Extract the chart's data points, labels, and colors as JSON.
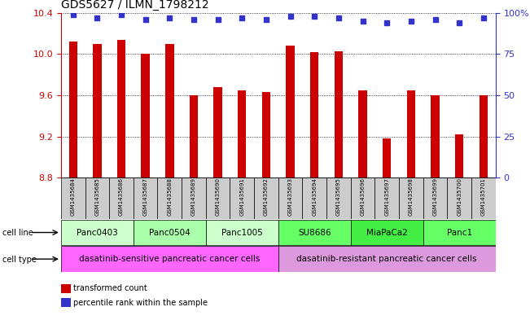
{
  "title": "GDS5627 / ILMN_1798212",
  "samples": [
    "GSM1435684",
    "GSM1435685",
    "GSM1435686",
    "GSM1435687",
    "GSM1435688",
    "GSM1435689",
    "GSM1435690",
    "GSM1435691",
    "GSM1435692",
    "GSM1435693",
    "GSM1435694",
    "GSM1435695",
    "GSM1435696",
    "GSM1435697",
    "GSM1435698",
    "GSM1435699",
    "GSM1435700",
    "GSM1435701"
  ],
  "transformed_count": [
    10.12,
    10.1,
    10.14,
    10.0,
    10.1,
    9.6,
    9.68,
    9.65,
    9.63,
    10.08,
    10.02,
    10.03,
    9.65,
    9.18,
    9.65,
    9.6,
    9.22,
    9.6
  ],
  "percentile_rank": [
    99,
    97,
    99,
    96,
    97,
    96,
    96,
    97,
    96,
    98,
    98,
    97,
    95,
    94,
    95,
    96,
    94,
    97
  ],
  "ylim_left": [
    8.8,
    10.4
  ],
  "ylim_right": [
    0,
    100
  ],
  "yticks_left": [
    8.8,
    9.2,
    9.6,
    10.0,
    10.4
  ],
  "yticks_right": [
    0,
    25,
    50,
    75,
    100
  ],
  "bar_color": "#cc0000",
  "scatter_color": "#3333cc",
  "cell_lines": [
    {
      "name": "Panc0403",
      "start": 0,
      "end": 3,
      "color": "#ccffcc"
    },
    {
      "name": "Panc0504",
      "start": 3,
      "end": 6,
      "color": "#aaffaa"
    },
    {
      "name": "Panc1005",
      "start": 6,
      "end": 9,
      "color": "#ccffcc"
    },
    {
      "name": "SU8686",
      "start": 9,
      "end": 12,
      "color": "#66ff66"
    },
    {
      "name": "MiaPaCa2",
      "start": 12,
      "end": 15,
      "color": "#44ee44"
    },
    {
      "name": "Panc1",
      "start": 15,
      "end": 18,
      "color": "#66ff66"
    }
  ],
  "cell_types": [
    {
      "name": "dasatinib-sensitive pancreatic cancer cells",
      "start": 0,
      "end": 9,
      "color": "#ff66ff"
    },
    {
      "name": "dasatinib-resistant pancreatic cancer cells",
      "start": 9,
      "end": 18,
      "color": "#dd99dd"
    }
  ],
  "legend_bar_label": "transformed count",
  "legend_scatter_label": "percentile rank within the sample",
  "background_color": "#ffffff",
  "sample_box_color": "#cccccc"
}
